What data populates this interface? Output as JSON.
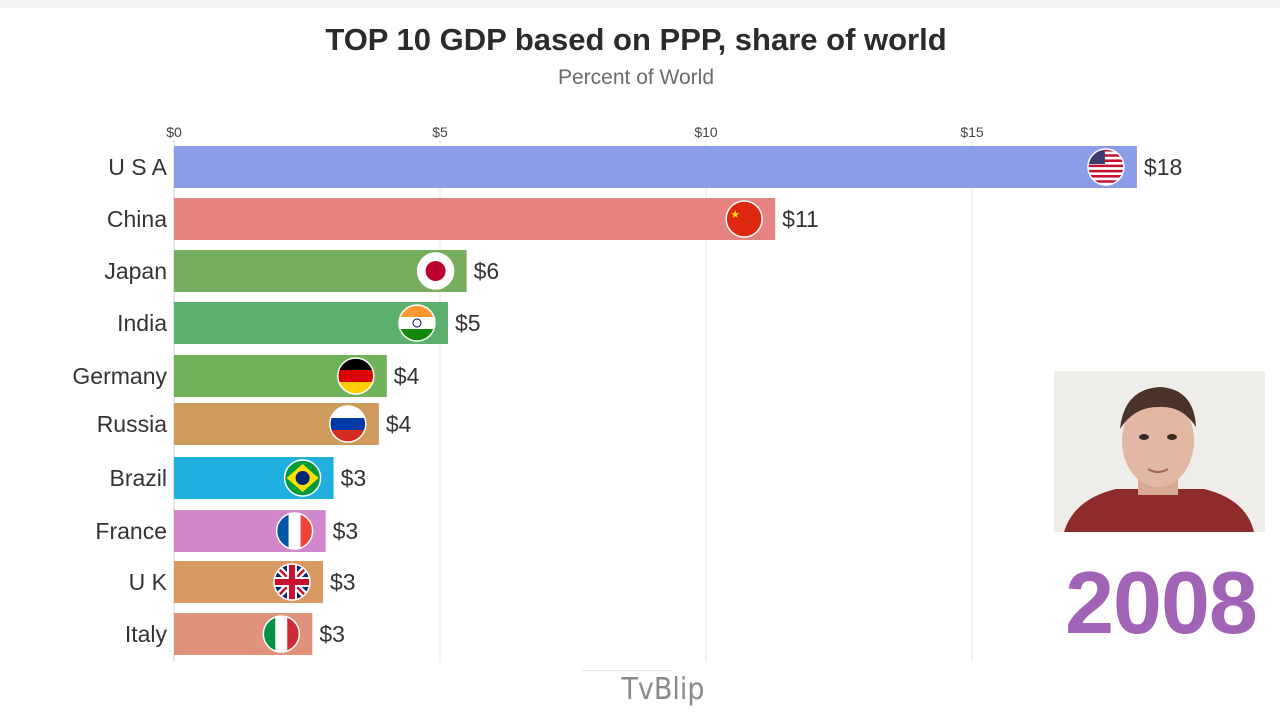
{
  "title": "TOP 10 GDP based on PPP, share of world",
  "subtitle": "Percent of World",
  "year": "2008",
  "watermark": "TvBlip",
  "chart_data": {
    "type": "bar",
    "orientation": "horizontal",
    "title": "TOP 10 GDP based on PPP, share of world",
    "subtitle": "Percent of World",
    "x_ticks": [
      "$0",
      "$5",
      "$10",
      "$15"
    ],
    "x_tick_values": [
      0,
      5,
      10,
      15
    ],
    "xlim": [
      0,
      18
    ],
    "grid": true,
    "categories": [
      "U S A",
      "China",
      "Japan",
      "India",
      "Germany",
      "Russia",
      "Brazil",
      "France",
      "U K",
      "Italy"
    ],
    "values": [
      18.1,
      11.3,
      5.5,
      5.15,
      4.0,
      3.85,
      3.0,
      2.85,
      2.8,
      2.6
    ],
    "value_labels": [
      "$18",
      "$11",
      "$6",
      "$5",
      "$4",
      "$4",
      "$3",
      "$3",
      "$3",
      "$3"
    ],
    "colors": [
      "#8b9de8",
      "#e58380",
      "#76ad5f",
      "#5daf6e",
      "#6fb25a",
      "#cf9b5d",
      "#1fb0e0",
      "#d087cc",
      "#d89a62",
      "#e0937a"
    ],
    "flags": [
      "usa-flag-icon",
      "china-flag-icon",
      "japan-flag-icon",
      "india-flag-icon",
      "germany-flag-icon",
      "russia-flag-icon",
      "brazil-flag-icon",
      "france-flag-icon",
      "uk-flag-icon",
      "italy-flag-icon"
    ]
  }
}
